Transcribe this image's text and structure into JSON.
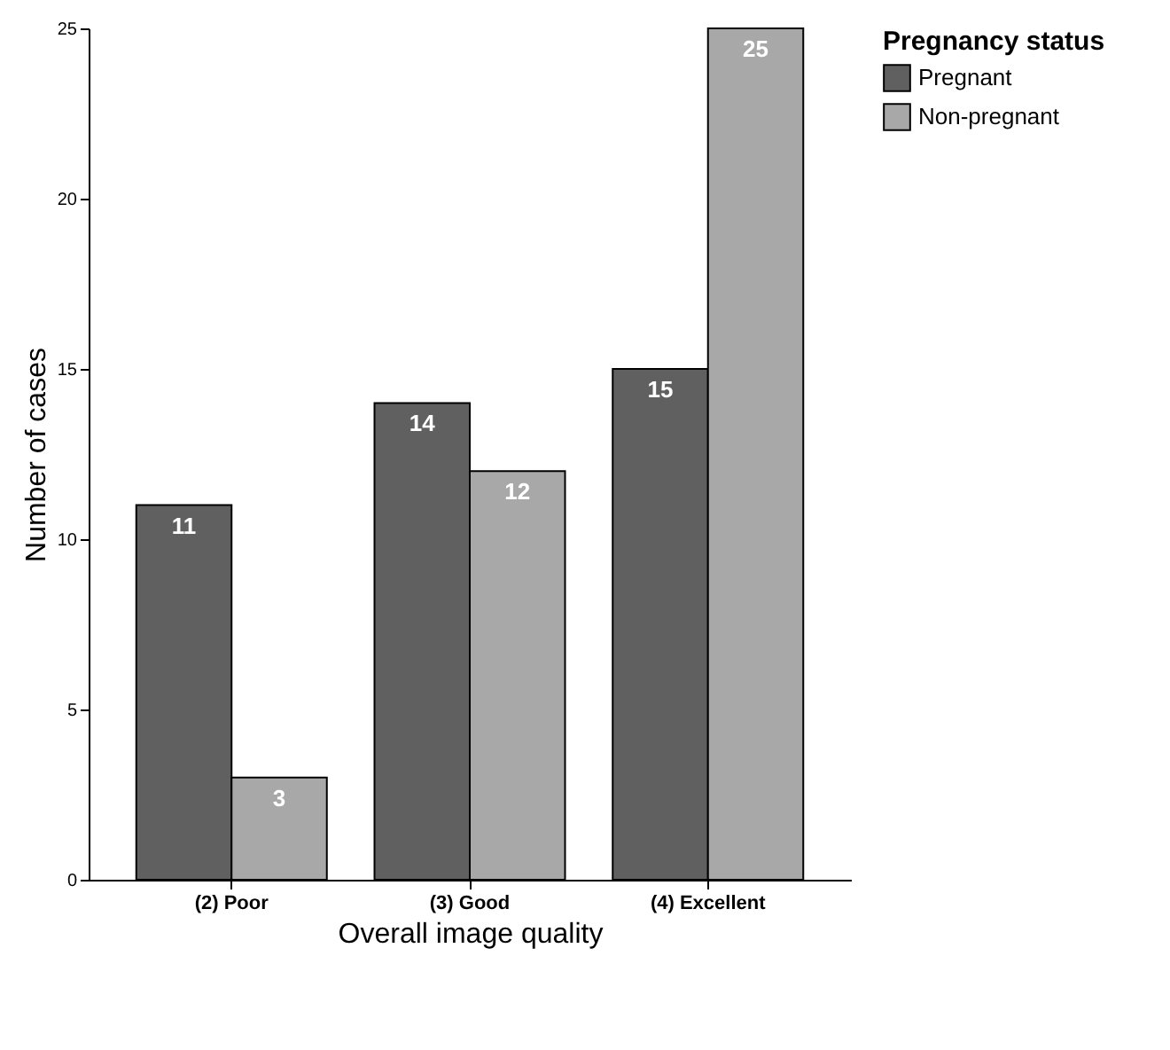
{
  "chart_data": {
    "type": "bar",
    "xlabel": "Overall image quality",
    "ylabel": "Number of cases",
    "legend_title": "Pregnancy status",
    "categories": [
      "(2) Poor",
      "(3) Good",
      "(4) Excellent"
    ],
    "series": [
      {
        "name": "Pregnant",
        "color": "#606060",
        "values": [
          11,
          14,
          15
        ]
      },
      {
        "name": "Non-pregnant",
        "color": "#a8a8a8",
        "values": [
          3,
          12,
          25
        ]
      }
    ],
    "ylim": [
      0,
      25
    ],
    "yticks": [
      0,
      5,
      10,
      15,
      20,
      25
    ],
    "grid": false,
    "legend": "top right",
    "data_labels": true
  }
}
